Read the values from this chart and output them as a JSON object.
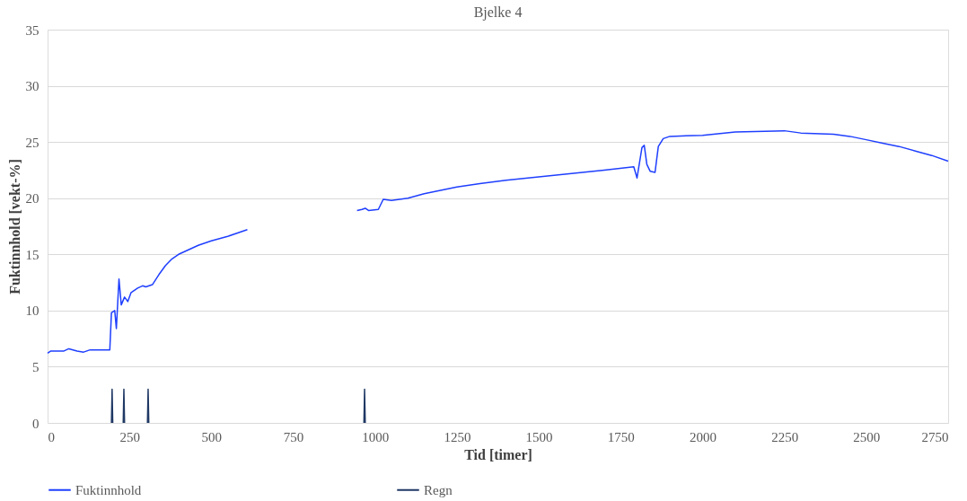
{
  "chart_data": {
    "type": "line",
    "title": "Bjelke 4",
    "xlabel": "Tid [timer]",
    "ylabel": "Fuktinnhold [vekt-%]",
    "xlim": [
      0,
      2750
    ],
    "xticks": [
      0,
      250,
      500,
      750,
      1000,
      1250,
      1500,
      1750,
      2000,
      2250,
      2500,
      2750
    ],
    "ylim": [
      0,
      35
    ],
    "yticks": [
      0,
      5,
      10,
      15,
      20,
      25,
      30,
      35
    ],
    "grid": "y",
    "legend": "bottom",
    "line_style": "solid",
    "marker": "none",
    "series": [
      {
        "name": "Fuktinnhold",
        "color": "#1f3fff",
        "x": [
          0,
          10,
          50,
          65,
          90,
          110,
          130,
          190,
          195,
          205,
          210,
          218,
          225,
          235,
          245,
          255,
          275,
          290,
          300,
          320,
          340,
          360,
          380,
          400,
          430,
          460,
          500,
          550,
          590,
          610,
          780,
          945,
          960,
          970,
          980,
          1010,
          1025,
          1050,
          1100,
          1150,
          1200,
          1250,
          1320,
          1400,
          1500,
          1600,
          1700,
          1790,
          1800,
          1815,
          1822,
          1830,
          1840,
          1855,
          1865,
          1880,
          1900,
          2000,
          2100,
          2250,
          2300,
          2400,
          2450,
          2500,
          2550,
          2600,
          2650,
          2700,
          2750
        ],
        "values": [
          6.2,
          6.4,
          6.4,
          6.6,
          6.4,
          6.3,
          6.5,
          6.5,
          9.8,
          10.0,
          8.4,
          12.8,
          10.5,
          11.2,
          10.8,
          11.6,
          12.0,
          12.2,
          12.1,
          12.3,
          13.2,
          14.0,
          14.6,
          15.0,
          15.4,
          15.8,
          16.2,
          16.6,
          17.0,
          17.2,
          null,
          18.9,
          19.0,
          19.1,
          18.9,
          19.0,
          19.9,
          19.8,
          20.0,
          20.4,
          20.7,
          21.0,
          21.3,
          21.6,
          21.9,
          22.2,
          22.5,
          22.8,
          21.8,
          24.5,
          24.7,
          23.0,
          22.4,
          22.3,
          24.6,
          25.3,
          25.5,
          25.6,
          25.9,
          26.0,
          25.8,
          25.7,
          25.5,
          25.2,
          24.9,
          24.6,
          24.2,
          23.8,
          23.3
        ]
      },
      {
        "name": "Regn",
        "color": "#1f3864",
        "x": [
          195,
          197,
          199,
          215,
          231,
          233,
          235,
          270,
          305,
          307,
          309,
          640,
          966,
          968,
          970
        ],
        "values": [
          0,
          3,
          0,
          null,
          0,
          3,
          0,
          null,
          0,
          3,
          0,
          null,
          0,
          3,
          0
        ]
      }
    ]
  }
}
